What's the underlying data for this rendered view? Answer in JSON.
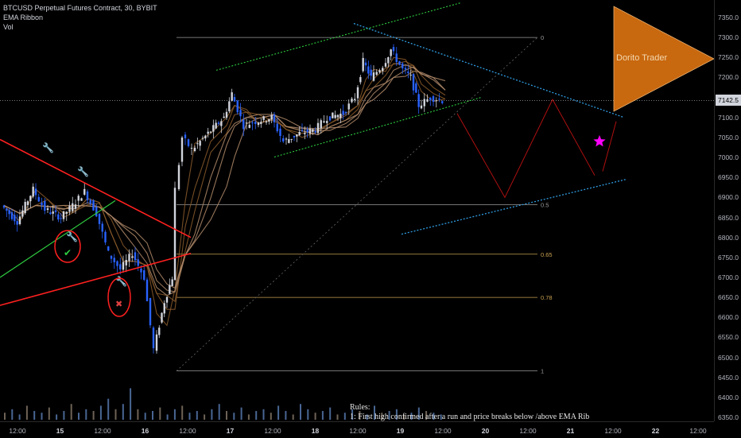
{
  "legend": {
    "title": "BTCUSD Perpetual Futures Contract, 30, BYBIT",
    "ema": "EMA Ribbon",
    "vol": "Vol"
  },
  "price_axis": {
    "ticks": [
      "7350.0",
      "7300.0",
      "7250.0",
      "7200.0",
      "7150.0",
      "7100.0",
      "7050.0",
      "7000.0",
      "6950.0",
      "6900.0",
      "6850.0",
      "6800.0",
      "6750.0",
      "6700.0",
      "6650.0",
      "6600.0",
      "6550.0",
      "6500.0",
      "6450.0",
      "6400.0",
      "6350.0"
    ],
    "last_price": "7142.5"
  },
  "time_axis": {
    "labels": [
      {
        "text": "12:00",
        "day": false
      },
      {
        "text": "15",
        "day": true
      },
      {
        "text": "12:00",
        "day": false
      },
      {
        "text": "16",
        "day": true
      },
      {
        "text": "12:00",
        "day": false
      },
      {
        "text": "17",
        "day": true
      },
      {
        "text": "12:00",
        "day": false
      },
      {
        "text": "18",
        "day": true
      },
      {
        "text": "12:00",
        "day": false
      },
      {
        "text": "19",
        "day": true
      },
      {
        "text": "12:00",
        "day": false
      },
      {
        "text": "20",
        "day": true
      },
      {
        "text": "12:00",
        "day": false
      },
      {
        "text": "21",
        "day": true
      },
      {
        "text": "12:00",
        "day": false
      },
      {
        "text": "22",
        "day": true
      },
      {
        "text": "12:00",
        "day": false
      }
    ]
  },
  "fib_labels": [
    "0",
    "0.5",
    "0.65",
    "0.78",
    "1"
  ],
  "watermark": "Dorito Trader",
  "rules_text": {
    "title": "Rules:",
    "line1": "1: First high confirmed after a run and price breaks below /above EMA Rib"
  },
  "colors": {
    "up": "#d1d4dc",
    "down": "#2962ff",
    "ribbon_top": "#8a5a2b",
    "ribbon_bottom": "#b08a6a",
    "trendline_red": "#ff2020",
    "trendline_green": "#2ecc40",
    "channel_blue": "#2f9be0",
    "projection": "#b01010",
    "star": "#ff00ff",
    "dorito": "#c8680f"
  },
  "chart_data": {
    "type": "candlestick",
    "symbol": "BTCUSD Perpetual Futures Contract",
    "interval": "30",
    "exchange": "BYBIT",
    "ylim": [
      6330,
      7380
    ],
    "last_price": 7142.5,
    "fib_levels": [
      {
        "ratio": "0",
        "price": 7300
      },
      {
        "ratio": "0.5",
        "price": 6882
      },
      {
        "ratio": "0.65",
        "price": 6758
      },
      {
        "ratio": "0.78",
        "price": 6650
      },
      {
        "ratio": "1",
        "price": 6466
      }
    ],
    "price_path": [
      {
        "t": 0,
        "p": 6880
      },
      {
        "t": 20,
        "p": 6840
      },
      {
        "t": 40,
        "p": 6920
      },
      {
        "t": 55,
        "p": 6870
      },
      {
        "t": 75,
        "p": 6850
      },
      {
        "t": 90,
        "p": 6880
      },
      {
        "t": 105,
        "p": 6915
      },
      {
        "t": 120,
        "p": 6860
      },
      {
        "t": 135,
        "p": 6760
      },
      {
        "t": 150,
        "p": 6720
      },
      {
        "t": 165,
        "p": 6760
      },
      {
        "t": 180,
        "p": 6700
      },
      {
        "t": 192,
        "p": 6520
      },
      {
        "t": 205,
        "p": 6640
      },
      {
        "t": 215,
        "p": 6700
      },
      {
        "t": 220,
        "p": 6920
      },
      {
        "t": 228,
        "p": 7050
      },
      {
        "t": 240,
        "p": 7020
      },
      {
        "t": 260,
        "p": 7060
      },
      {
        "t": 280,
        "p": 7100
      },
      {
        "t": 290,
        "p": 7160
      },
      {
        "t": 305,
        "p": 7080
      },
      {
        "t": 320,
        "p": 7090
      },
      {
        "t": 340,
        "p": 7100
      },
      {
        "t": 355,
        "p": 7040
      },
      {
        "t": 375,
        "p": 7060
      },
      {
        "t": 395,
        "p": 7070
      },
      {
        "t": 410,
        "p": 7100
      },
      {
        "t": 430,
        "p": 7110
      },
      {
        "t": 445,
        "p": 7150
      },
      {
        "t": 455,
        "p": 7240
      },
      {
        "t": 465,
        "p": 7200
      },
      {
        "t": 480,
        "p": 7230
      },
      {
        "t": 490,
        "p": 7270
      },
      {
        "t": 505,
        "p": 7220
      },
      {
        "t": 515,
        "p": 7200
      },
      {
        "t": 525,
        "p": 7130
      },
      {
        "t": 540,
        "p": 7150
      },
      {
        "t": 555,
        "p": 7142.5
      }
    ],
    "volume_bars": [
      4,
      6,
      3,
      8,
      5,
      4,
      7,
      3,
      5,
      9,
      4,
      6,
      5,
      8,
      12,
      6,
      9,
      18,
      6,
      4,
      5,
      7,
      3,
      6,
      8,
      4,
      5,
      3,
      6,
      9,
      5,
      4,
      7,
      3,
      5,
      6,
      4,
      8,
      5,
      3,
      9,
      6,
      4,
      5,
      7,
      3,
      4,
      6,
      5,
      3,
      8,
      4,
      5,
      6,
      3,
      4,
      7,
      5,
      4,
      3
    ]
  }
}
